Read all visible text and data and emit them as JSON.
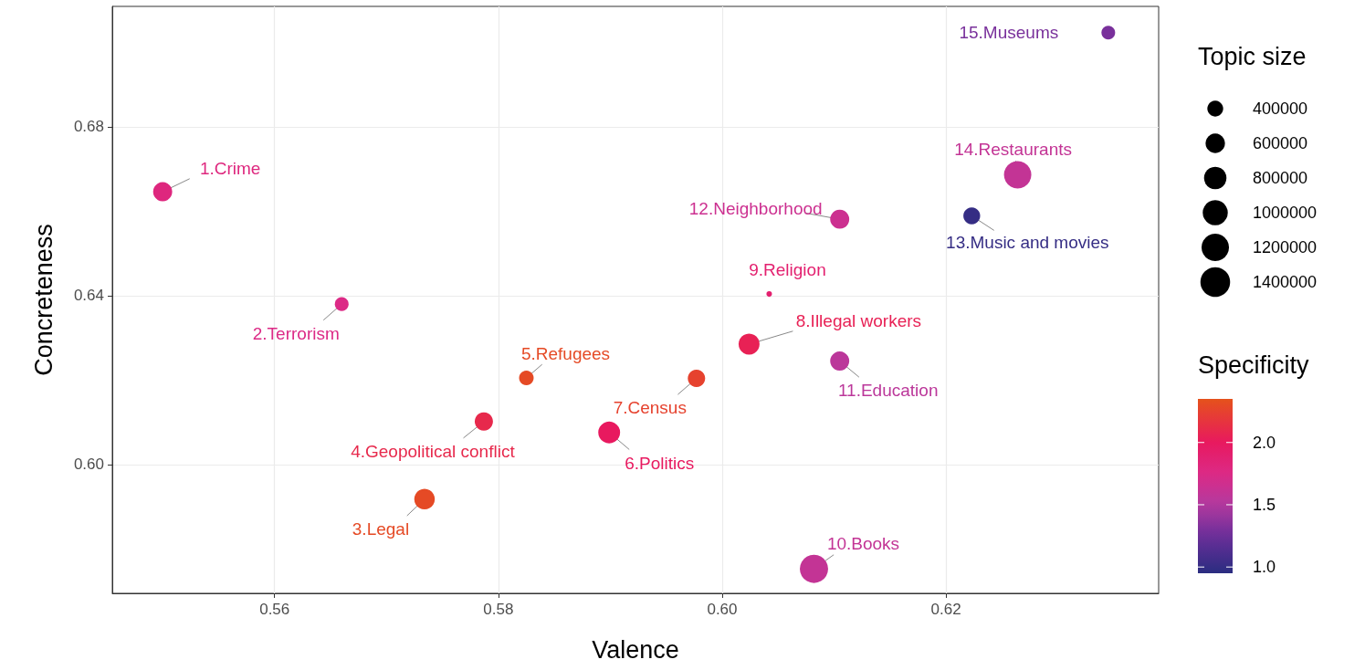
{
  "chart_data": {
    "type": "bubble",
    "xlabel": "Valence",
    "ylabel": "Concreteness",
    "legend_title": "Topic size",
    "clabel": "Specificity",
    "x": [
      0.55,
      0.566,
      0.5734,
      0.5787,
      0.5825,
      0.5899,
      0.5977,
      0.6024,
      0.6042,
      0.6082,
      0.6105,
      0.6105,
      0.6223,
      0.6264,
      0.6345
    ],
    "values": [
      0.6646,
      0.638,
      0.5918,
      0.6102,
      0.6205,
      0.6076,
      0.6204,
      0.6285,
      0.6404,
      0.5753,
      0.6245,
      0.6581,
      0.6589,
      0.6686,
      0.7023
    ],
    "sizes": [
      580000,
      300000,
      670000,
      530000,
      340000,
      760000,
      480000,
      700000,
      50000,
      1270000,
      580000,
      580000,
      450000,
      1190000,
      300000
    ],
    "cvalues": [
      1.8,
      1.75,
      2.3,
      2.1,
      2.3,
      2.0,
      2.25,
      2.05,
      1.9,
      1.6,
      1.55,
      1.65,
      1.0,
      1.6,
      1.3
    ],
    "annotations": [
      {
        "text": "1.Crime",
        "x": 0.55,
        "y": 0.6646
      },
      {
        "text": "2.Terrorism",
        "x": 0.566,
        "y": 0.638
      },
      {
        "text": "3.Legal",
        "x": 0.5734,
        "y": 0.5918
      },
      {
        "text": "4.Geopolitical conflict",
        "x": 0.5787,
        "y": 0.6102
      },
      {
        "text": "5.Refugees",
        "x": 0.5825,
        "y": 0.6205
      },
      {
        "text": "6.Politics",
        "x": 0.5899,
        "y": 0.6076
      },
      {
        "text": "7.Census",
        "x": 0.5977,
        "y": 0.6204
      },
      {
        "text": "8.Illegal workers",
        "x": 0.6024,
        "y": 0.6285
      },
      {
        "text": "9.Religion",
        "x": 0.6042,
        "y": 0.6404
      },
      {
        "text": "10.Books",
        "x": 0.6082,
        "y": 0.5753
      },
      {
        "text": "11.Education",
        "x": 0.6105,
        "y": 0.6245
      },
      {
        "text": "12.Neighborhood",
        "x": 0.6105,
        "y": 0.6581
      },
      {
        "text": "13.Music and movies",
        "x": 0.6223,
        "y": 0.6589
      },
      {
        "text": "14.Restaurants",
        "x": 0.6264,
        "y": 0.6686
      },
      {
        "text": "15.Museums",
        "x": 0.6345,
        "y": 0.7023
      }
    ],
    "size_legend": [
      400000,
      600000,
      800000,
      1000000,
      1200000,
      1400000
    ],
    "clim": [
      0.95,
      2.35
    ],
    "cticks": [
      {
        "value": 1,
        "label": "1.0"
      },
      {
        "value": 1.5,
        "label": "1.5"
      },
      {
        "value": 2,
        "label": "2.0"
      }
    ],
    "xlim": [
      0.5455,
      0.639
    ],
    "xticks": [
      0.56,
      0.58,
      {
        "value": 0.6,
        "label": "0.60"
      },
      0.62
    ],
    "ylim": [
      0.5695,
      0.7085
    ],
    "yticks": [
      {
        "value": 0.6,
        "label": "0.60"
      },
      0.64,
      0.68
    ],
    "grid": true,
    "marker": "circle"
  }
}
